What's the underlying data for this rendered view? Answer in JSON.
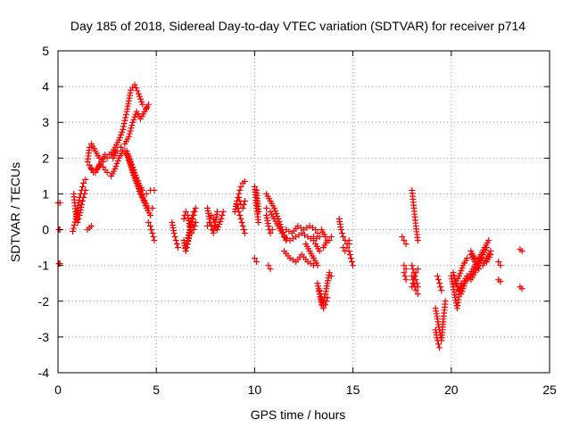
{
  "chart_data": {
    "type": "scatter",
    "title": "Day 185 of 2018, Sidereal Day-to-day VTEC variation (SDTVAR) for receiver p714",
    "xlabel": "GPS time / hours",
    "ylabel": "SDTVAR / TECUs",
    "xlim": [
      0,
      25
    ],
    "ylim": [
      -4,
      5
    ],
    "xticks": [
      0,
      5,
      10,
      15,
      20,
      25
    ],
    "yticks": [
      -4,
      -3,
      -2,
      -1,
      0,
      1,
      2,
      3,
      4,
      5
    ],
    "grid": true,
    "marker": "plus",
    "series_color": "#ff0000",
    "segments": [
      {
        "x": [
          0.0,
          0.1
        ],
        "y": [
          0.75,
          0.75
        ]
      },
      {
        "x": [
          0.05,
          0.1
        ],
        "y": [
          0.0,
          0.0
        ]
      },
      {
        "x": [
          0.05,
          0.1
        ],
        "y": [
          -0.95,
          -0.95
        ]
      },
      {
        "x": [
          0.75,
          0.9,
          1.0,
          1.1,
          1.2,
          1.3,
          1.4
        ],
        "y": [
          -0.05,
          0.3,
          0.6,
          0.9,
          1.1,
          1.3,
          1.4
        ]
      },
      {
        "x": [
          0.8,
          0.9,
          1.0,
          1.1,
          1.2,
          1.3,
          1.4
        ],
        "y": [
          1.0,
          0.5,
          0.2,
          0.4,
          0.7,
          0.9,
          1.1
        ]
      },
      {
        "x": [
          1.5,
          1.6,
          1.7
        ],
        "y": [
          0.0,
          0.05,
          0.1
        ]
      },
      {
        "x": [
          1.5,
          1.6,
          1.7,
          1.9,
          2.1,
          2.3,
          2.5,
          2.7,
          2.9,
          3.1,
          3.3,
          3.5,
          3.7,
          3.9,
          4.1,
          4.3,
          4.5
        ],
        "y": [
          1.9,
          2.3,
          2.4,
          2.2,
          2.0,
          1.9,
          2.0,
          2.1,
          2.3,
          2.5,
          2.8,
          3.3,
          3.9,
          4.05,
          3.8,
          3.5,
          3.4
        ]
      },
      {
        "x": [
          1.6,
          1.8,
          2.0,
          2.2,
          2.4,
          2.6,
          2.8,
          3.0,
          3.2,
          3.4,
          3.6,
          3.8,
          4.0,
          4.2,
          4.4,
          4.6
        ],
        "y": [
          1.8,
          1.6,
          1.7,
          1.9,
          2.1,
          2.1,
          2.0,
          2.2,
          2.3,
          2.4,
          2.6,
          3.0,
          3.3,
          3.1,
          3.3,
          3.5
        ]
      },
      {
        "x": [
          1.7,
          1.9,
          2.1,
          2.3,
          2.5,
          2.7,
          2.9,
          3.1,
          3.3,
          3.5,
          3.7,
          3.9,
          4.1,
          4.3,
          4.5,
          4.7
        ],
        "y": [
          1.7,
          1.6,
          1.8,
          1.75,
          1.6,
          1.5,
          1.7,
          2.0,
          2.2,
          2.1,
          1.8,
          1.5,
          1.2,
          0.9,
          0.6,
          0.4
        ]
      },
      {
        "x": [
          3.0,
          3.2,
          3.4,
          3.6,
          3.8,
          4.0,
          4.2,
          4.4,
          4.6,
          4.8
        ],
        "y": [
          2.2,
          2.3,
          2.2,
          2.0,
          1.6,
          1.3,
          1.0,
          0.8,
          0.6,
          0.6
        ]
      },
      {
        "x": [
          3.5,
          3.7,
          3.9,
          4.1,
          4.3,
          4.5,
          4.7,
          4.9
        ],
        "y": [
          2.2,
          1.9,
          1.6,
          1.3,
          1.1,
          1.0,
          1.1,
          1.1
        ]
      },
      {
        "x": [
          4.6,
          4.7,
          4.8,
          4.9
        ],
        "y": [
          0.2,
          0.1,
          -0.1,
          -0.3
        ]
      },
      {
        "x": [
          5.8,
          5.9,
          6.0,
          6.1
        ],
        "y": [
          0.2,
          -0.1,
          -0.3,
          -0.5
        ]
      },
      {
        "x": [
          6.4,
          6.5,
          6.6,
          6.7,
          6.8,
          6.9,
          7.0
        ],
        "y": [
          -0.3,
          -0.6,
          -0.4,
          -0.1,
          0.2,
          0.4,
          0.6
        ]
      },
      {
        "x": [
          6.4,
          6.5,
          6.6,
          6.7,
          6.8,
          6.9,
          7.0
        ],
        "y": [
          0.3,
          0.5,
          0.4,
          0.1,
          -0.1,
          0.0,
          0.2
        ]
      },
      {
        "x": [
          6.5,
          6.6,
          6.7,
          6.8,
          6.9
        ],
        "y": [
          -0.5,
          -0.3,
          0.0,
          0.3,
          0.5
        ]
      },
      {
        "x": [
          7.6,
          7.7,
          7.8,
          7.9,
          8.0,
          8.1
        ],
        "y": [
          0.6,
          0.3,
          0.1,
          -0.1,
          0.2,
          0.5
        ]
      },
      {
        "x": [
          7.6,
          7.7,
          7.8,
          7.9,
          8.0,
          8.1,
          8.3,
          8.4
        ],
        "y": [
          0.1,
          0.2,
          0.4,
          0.3,
          0.1,
          0.0,
          0.3,
          0.5
        ]
      },
      {
        "x": [
          9.0,
          9.1,
          9.2,
          9.3,
          9.4,
          9.5
        ],
        "y": [
          0.5,
          0.8,
          1.0,
          1.2,
          1.3,
          1.35
        ]
      },
      {
        "x": [
          9.1,
          9.2,
          9.3,
          9.4,
          9.5
        ],
        "y": [
          0.7,
          0.5,
          0.3,
          0.1,
          -0.1
        ]
      },
      {
        "x": [
          9.2,
          9.3,
          9.4,
          9.5
        ],
        "y": [
          0.9,
          0.7,
          0.6,
          0.8
        ]
      },
      {
        "x": [
          10.0,
          10.1,
          10.2
        ],
        "y": [
          1.2,
          0.6,
          0.2
        ]
      },
      {
        "x": [
          10.0,
          10.1
        ],
        "y": [
          -0.8,
          -0.9
        ]
      },
      {
        "x": [
          10.1,
          10.2
        ],
        "y": [
          1.1,
          0.5
        ]
      },
      {
        "x": [
          10.6,
          10.8,
          11.0,
          11.2,
          11.4,
          11.6
        ],
        "y": [
          1.0,
          0.8,
          0.6,
          0.3,
          0.0,
          -0.3
        ]
      },
      {
        "x": [
          10.6,
          10.8,
          11.0,
          11.2,
          11.4
        ],
        "y": [
          0.6,
          0.5,
          0.3,
          0.1,
          -0.1
        ]
      },
      {
        "x": [
          10.6,
          10.7,
          10.8,
          10.9
        ],
        "y": [
          0.4,
          0.1,
          -0.1,
          0.0
        ]
      },
      {
        "x": [
          10.7,
          10.8
        ],
        "y": [
          -1.0,
          -1.1
        ]
      },
      {
        "x": [
          11.5,
          11.8,
          12.1,
          12.4,
          12.7,
          13.0,
          13.3
        ],
        "y": [
          -0.2,
          -0.3,
          -0.2,
          -0.1,
          -0.2,
          -0.3,
          -0.2
        ]
      },
      {
        "x": [
          11.5,
          11.8,
          12.1,
          12.4,
          12.7,
          13.0
        ],
        "y": [
          -0.6,
          -0.8,
          -0.9,
          -0.7,
          -0.9,
          -1.0
        ]
      },
      {
        "x": [
          11.6,
          11.9,
          12.2,
          12.5,
          12.8,
          13.1
        ],
        "y": [
          0.0,
          -0.1,
          0.1,
          0.0,
          0.1,
          0.0
        ]
      },
      {
        "x": [
          12.6,
          12.8,
          13.0,
          13.2
        ],
        "y": [
          -0.4,
          -0.6,
          -0.8,
          -1.0
        ]
      },
      {
        "x": [
          13.0,
          13.2,
          13.4,
          13.6,
          13.8
        ],
        "y": [
          -0.2,
          -0.1,
          0.0,
          -0.2,
          -0.3
        ]
      },
      {
        "x": [
          13.1,
          13.3,
          13.5,
          13.7,
          13.9
        ],
        "y": [
          -0.4,
          -0.6,
          -0.5,
          -0.3,
          -0.2
        ]
      },
      {
        "x": [
          13.2,
          13.3,
          13.4,
          13.5,
          13.6,
          13.7,
          13.8,
          13.9
        ],
        "y": [
          -1.5,
          -1.8,
          -2.1,
          -2.0,
          -1.8,
          -1.5,
          -1.2,
          -1.3
        ]
      },
      {
        "x": [
          13.3,
          13.4,
          13.5,
          13.6,
          13.7
        ],
        "y": [
          -1.7,
          -1.9,
          -2.2,
          -2.1,
          -1.9
        ]
      },
      {
        "x": [
          14.3,
          14.4,
          14.5,
          14.6,
          14.7,
          14.8
        ],
        "y": [
          0.3,
          0.0,
          -0.2,
          -0.3,
          -0.4,
          -0.3
        ]
      },
      {
        "x": [
          14.5,
          14.6,
          14.7,
          14.8
        ],
        "y": [
          -0.5,
          -0.6,
          -0.5,
          -0.4
        ]
      },
      {
        "x": [
          14.8,
          14.9,
          15.0
        ],
        "y": [
          -0.6,
          -0.8,
          -1.0
        ]
      },
      {
        "x": [
          17.5,
          17.6,
          17.7
        ],
        "y": [
          -0.2,
          -0.3,
          -0.4
        ]
      },
      {
        "x": [
          17.6,
          17.7
        ],
        "y": [
          -1.2,
          -1.4
        ]
      },
      {
        "x": [
          17.6,
          17.7
        ],
        "y": [
          -1.0,
          -1.1
        ]
      },
      {
        "x": [
          18.0,
          18.1,
          18.2,
          18.3
        ],
        "y": [
          1.1,
          0.6,
          0.1,
          -0.3
        ]
      },
      {
        "x": [
          18.0,
          18.1,
          18.2,
          18.3
        ],
        "y": [
          -1.0,
          -1.2,
          -1.4,
          -1.6
        ]
      },
      {
        "x": [
          18.0,
          18.1,
          18.2,
          18.3
        ],
        "y": [
          -1.3,
          -1.5,
          -1.7,
          -1.8
        ]
      },
      {
        "x": [
          18.0,
          18.1,
          18.2,
          18.3
        ],
        "y": [
          -1.6,
          -1.4,
          -1.2,
          -1.1
        ]
      },
      {
        "x": [
          19.2,
          19.3,
          19.4,
          19.5,
          19.6,
          19.7
        ],
        "y": [
          -2.2,
          -2.5,
          -2.8,
          -3.1,
          -2.5,
          -2.0
        ]
      },
      {
        "x": [
          19.2,
          19.3,
          19.4
        ],
        "y": [
          -2.8,
          -3.1,
          -3.3
        ]
      },
      {
        "x": [
          19.3,
          19.4,
          19.5
        ],
        "y": [
          -1.3,
          -1.5,
          -1.7
        ]
      },
      {
        "x": [
          20.0,
          20.1,
          20.2,
          20.3,
          20.4,
          20.5
        ],
        "y": [
          -1.3,
          -1.6,
          -1.9,
          -2.2,
          -1.8,
          -1.5
        ]
      },
      {
        "x": [
          20.1,
          20.3,
          20.5,
          20.7,
          20.9,
          21.1,
          21.3,
          21.5,
          21.7,
          21.9
        ],
        "y": [
          -1.2,
          -1.6,
          -1.8,
          -1.5,
          -1.3,
          -1.1,
          -0.9,
          -0.7,
          -0.5,
          -0.3
        ]
      },
      {
        "x": [
          20.2,
          20.4,
          20.6,
          20.8,
          21.0,
          21.2,
          21.4,
          21.6,
          21.8,
          22.0
        ],
        "y": [
          -1.5,
          -1.3,
          -1.0,
          -0.8,
          -0.7,
          -0.9,
          -1.1,
          -1.0,
          -0.8,
          -0.6
        ]
      },
      {
        "x": [
          20.4,
          20.6,
          20.8,
          21.0,
          21.2,
          21.4,
          21.6,
          21.8,
          22.0
        ],
        "y": [
          -1.7,
          -1.5,
          -1.3,
          -1.4,
          -1.2,
          -1.0,
          -0.8,
          -0.9,
          -0.7
        ]
      },
      {
        "x": [
          21.0,
          21.2,
          21.4,
          21.6,
          21.8
        ],
        "y": [
          -0.6,
          -0.8,
          -0.9,
          -0.7,
          -0.5
        ]
      },
      {
        "x": [
          22.4,
          22.5
        ],
        "y": [
          -0.9,
          -1.0
        ]
      },
      {
        "x": [
          22.4,
          22.5
        ],
        "y": [
          -1.4,
          -1.45
        ]
      },
      {
        "x": [
          23.5,
          23.6
        ],
        "y": [
          -0.55,
          -0.6
        ]
      },
      {
        "x": [
          23.5,
          23.6
        ],
        "y": [
          -1.6,
          -1.65
        ]
      }
    ]
  }
}
